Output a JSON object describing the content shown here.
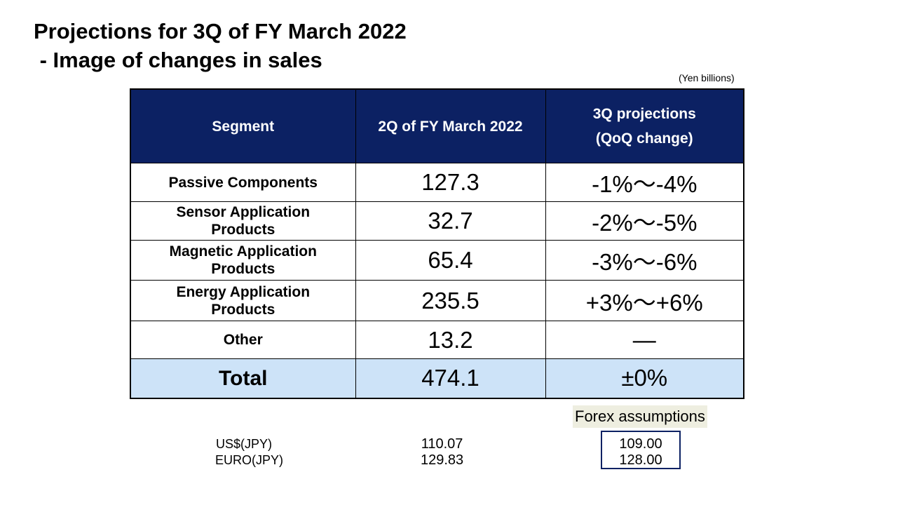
{
  "title": {
    "line1": "Projections for 3Q of FY March 2022",
    "line2": " - Image of changes in sales"
  },
  "unit": "(Yen billions)",
  "table": {
    "headers": [
      "Segment",
      "2Q of FY March 2022",
      "3Q projections",
      "(QoQ change)"
    ],
    "rows": [
      {
        "segment_l1": "Passive Components",
        "segment_l2": "",
        "q2": "127.3",
        "q3": "-1%～-4%"
      },
      {
        "segment_l1": "Sensor Application",
        "segment_l2": "Products",
        "q2": "32.7",
        "q3": "-2%～-5%"
      },
      {
        "segment_l1": "Magnetic Application",
        "segment_l2": "Products",
        "q2": "65.4",
        "q3": "-3%～-6%"
      },
      {
        "segment_l1": "Energy Application",
        "segment_l2": "Products",
        "q2": "235.5",
        "q3": "+3%～+6%"
      },
      {
        "segment_l1": "Other",
        "segment_l2": "",
        "q2": "13.2",
        "q3": "—"
      }
    ],
    "total": {
      "segment": "Total",
      "q2": "474.1",
      "q3": "±0%"
    }
  },
  "forex": {
    "label": "Forex assumptions",
    "currencies": [
      "US$(JPY)",
      "EURO(JPY)"
    ],
    "q2_values": [
      "110.07",
      "129.83"
    ],
    "assumption_values": [
      "109.00",
      "128.00"
    ]
  }
}
